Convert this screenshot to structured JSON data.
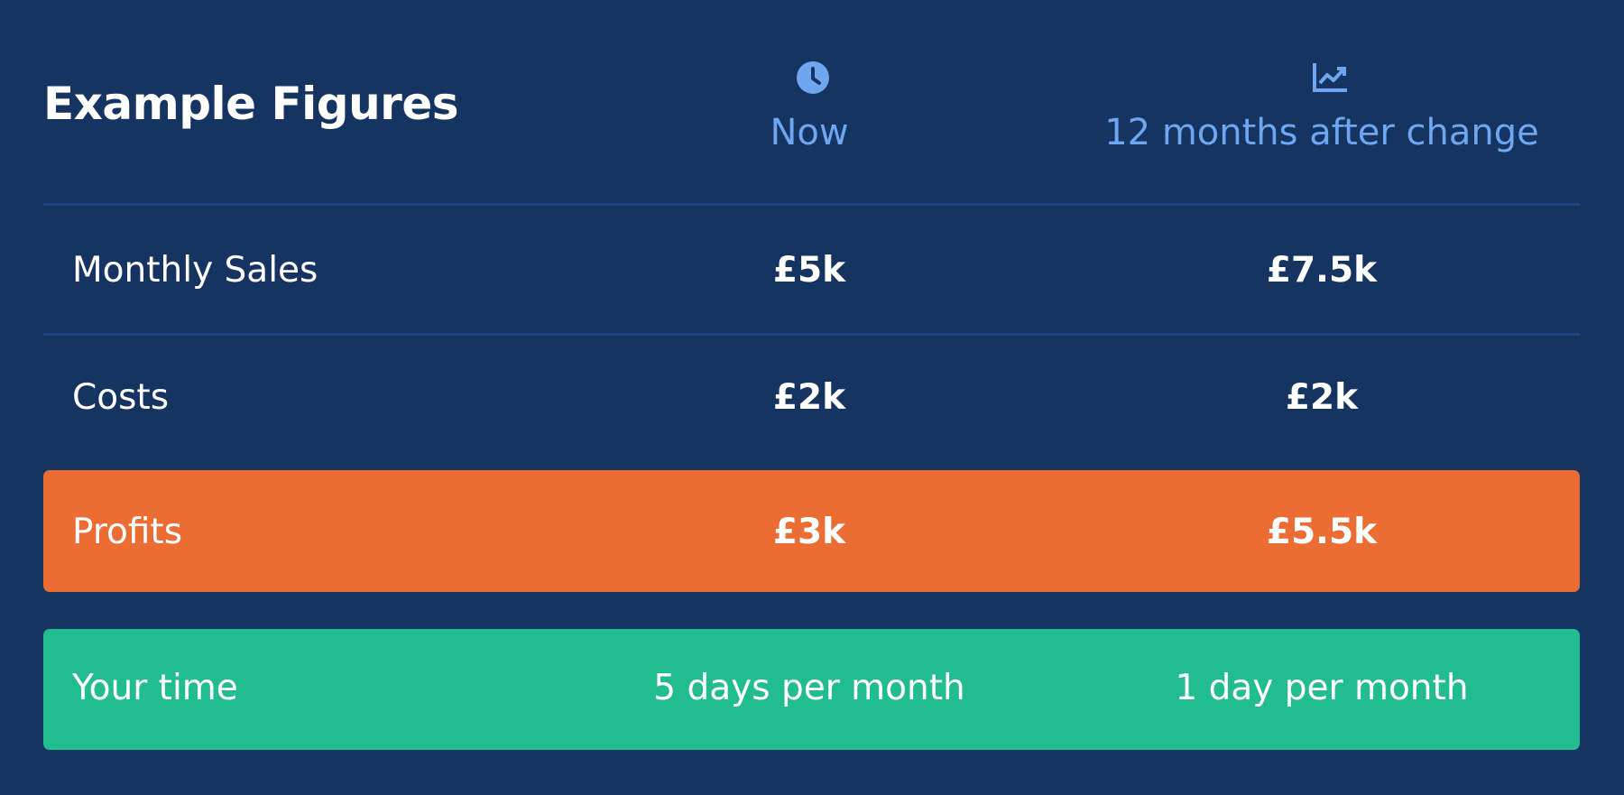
{
  "header": {
    "title": "Example Figures",
    "columns": [
      "Now",
      "12 months after change"
    ]
  },
  "table": {
    "rows": [
      {
        "label": "Monthly Sales",
        "values": [
          "£5k",
          "£7.5k"
        ]
      },
      {
        "label": "Costs",
        "values": [
          "£2k",
          "£2k"
        ]
      },
      {
        "label": "Profits",
        "values": [
          "£3k",
          "£5.5k"
        ]
      },
      {
        "label": "Your time",
        "values": [
          "5 days per month",
          "1 day per month"
        ]
      }
    ]
  }
}
